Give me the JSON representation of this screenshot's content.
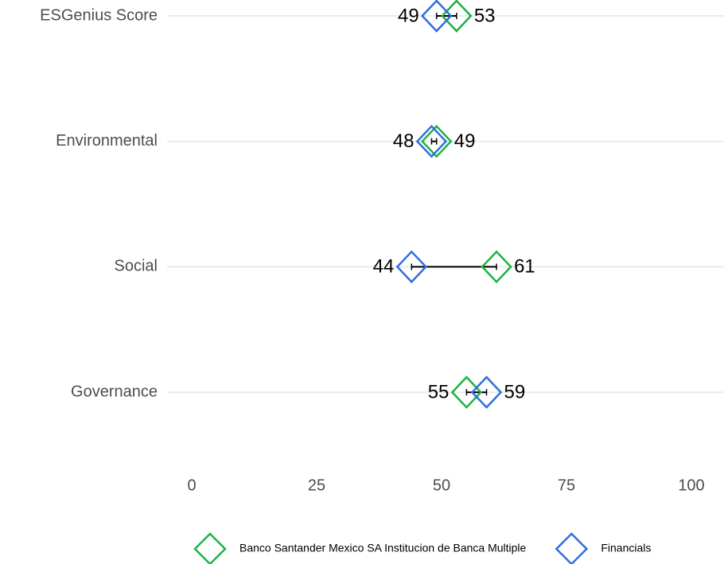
{
  "chart_data": {
    "type": "dumbbell",
    "categories": [
      "ESGenius Score",
      "Environmental",
      "Social",
      "Governance"
    ],
    "series": [
      {
        "name": "Banco Santander Mexico SA Institucion de Banca Multiple",
        "color": "#1db343",
        "values": [
          53,
          49,
          61,
          55
        ]
      },
      {
        "name": "Financials",
        "color": "#2f6fdf",
        "values": [
          49,
          48,
          44,
          59
        ]
      }
    ],
    "xlim": [
      0,
      100
    ],
    "xticks": [
      0,
      25,
      50,
      75,
      100
    ],
    "grid": true
  }
}
